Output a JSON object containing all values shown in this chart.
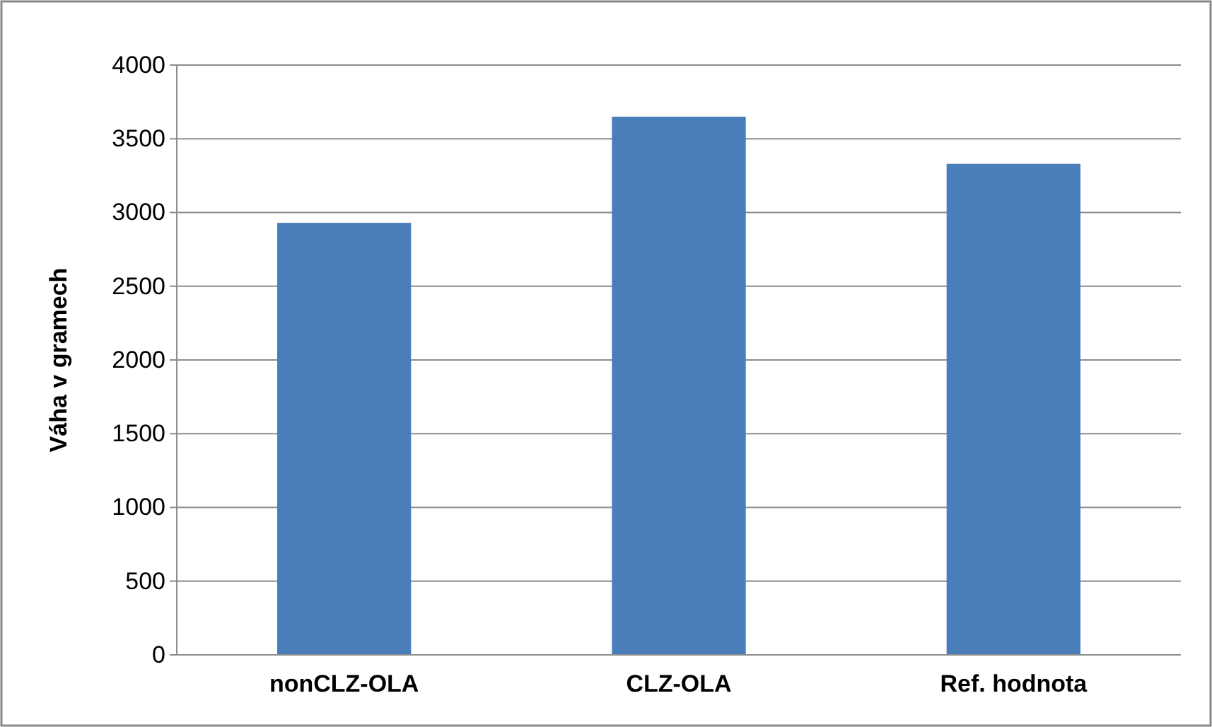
{
  "chart_data": {
    "type": "bar",
    "ylabel": "Váha v gramech",
    "categories": [
      "nonCLZ-OLA",
      "CLZ-OLA",
      "Ref. hodnota"
    ],
    "values": [
      2930,
      3650,
      3330
    ],
    "color": "#4a7ebb",
    "ylim": [
      0,
      4000
    ],
    "yticks": [
      0,
      500,
      1000,
      1500,
      2000,
      2500,
      3000,
      3500,
      4000
    ],
    "grid": "y"
  }
}
